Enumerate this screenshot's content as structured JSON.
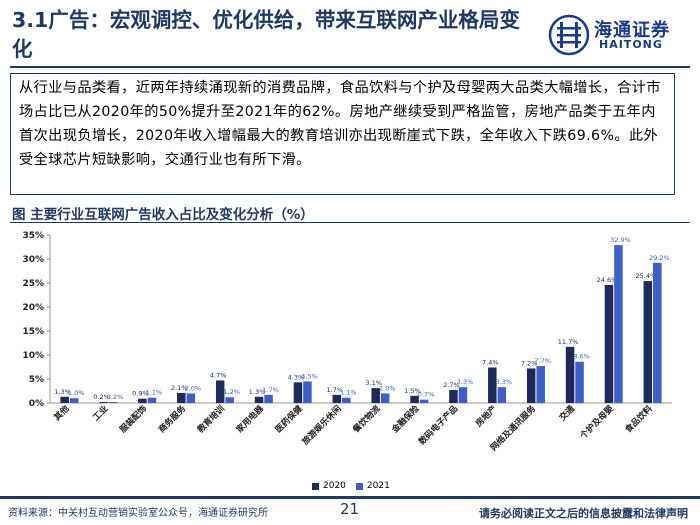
{
  "header": {
    "title": "3.1广告：宏观调控、优化供给，带来互联网产业格局变化",
    "logo_cn": "海通证券",
    "logo_en": "HAITONG",
    "logo_icon": "haitong-logo-icon"
  },
  "summary": "从行业与品类看，近两年持续涌现新的消费品牌，食品饮料与个护及母婴两大品类大幅增长，合计市场占比已从2020年的50%提升至2021年的62%。房地产继续受到严格监管，房地产品类于五年内首次出现负增长，2020年收入增幅最大的教育培训亦出现断崖式下跌，全年收入下跌69.6%。此外受全球芯片短缺影响，交通行业也有所下滑。",
  "figure_title": "图 主要行业互联网广告收入占比及变化分析（%）",
  "chart_data": {
    "type": "bar",
    "categories": [
      "其他",
      "工业",
      "服装配饰",
      "商务服务",
      "教育培训",
      "家用电器",
      "医药保健",
      "旅游娱乐休闲",
      "餐饮物流",
      "金融保险",
      "数码电子产品",
      "房地产",
      "网络及通讯服务",
      "交通",
      "个护及母婴",
      "食品饮料"
    ],
    "series": [
      {
        "name": "2020",
        "color": "#1f2a5a",
        "values": [
          1.3,
          0.2,
          0.9,
          2.1,
          4.7,
          1.3,
          4.3,
          1.7,
          3.1,
          1.5,
          2.7,
          7.4,
          7.2,
          11.7,
          24.6,
          25.4
        ],
        "labels": [
          "1.3%",
          "0.2%",
          "0.9%",
          "2.1%",
          "4.7%",
          "1.3%",
          "4.3%",
          "1.7%",
          "3.1%",
          "1.5%",
          "2.7%",
          "7.4%",
          "7.2%",
          "11.7%",
          "24.6%",
          "25.4%"
        ]
      },
      {
        "name": "2021",
        "color": "#3f5fc8",
        "values": [
          1.0,
          0.2,
          1.1,
          2.0,
          1.2,
          1.7,
          4.5,
          1.1,
          2.0,
          0.7,
          3.3,
          3.3,
          7.7,
          8.6,
          32.9,
          29.2
        ],
        "labels": [
          "1.0%",
          "0.2%",
          "1.1%",
          "2.0%",
          "1.2%",
          "1.7%",
          "4.5%",
          "1.1%",
          "2.0%",
          "0.7%",
          "3.3%",
          "3.3%",
          "7.7%",
          "8.6%",
          "32.9%",
          "29.2%"
        ]
      }
    ],
    "y_ticks": [
      "0%",
      "5%",
      "10%",
      "15%",
      "20%",
      "25%",
      "30%",
      "35%"
    ],
    "ylim": [
      0,
      35
    ],
    "grid": false,
    "legend_position": "bottom"
  },
  "footer": {
    "source": "资料来源：中关村互动营销实验室公众号，海通证券研究所",
    "page_number": "21",
    "disclaimer": "请务必阅读正文之后的信息披露和法律声明"
  }
}
